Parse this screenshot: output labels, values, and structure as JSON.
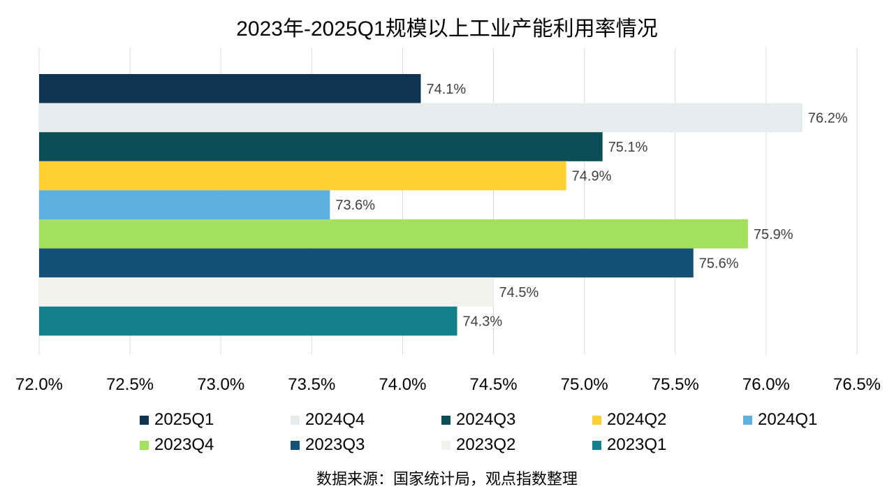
{
  "chart_data": {
    "type": "bar",
    "orientation": "horizontal",
    "title": "2023年-2025Q1规模以上工业产能利用率情况",
    "source": "数据来源：国家统计局，观点指数整理",
    "categories": [
      "2025Q1",
      "2024Q4",
      "2024Q3",
      "2024Q2",
      "2024Q1",
      "2023Q4",
      "2023Q3",
      "2023Q2",
      "2023Q1"
    ],
    "values": [
      74.1,
      76.2,
      75.1,
      74.9,
      73.6,
      75.9,
      75.6,
      74.5,
      74.3
    ],
    "value_labels": [
      "74.1%",
      "76.2%",
      "75.1%",
      "74.9%",
      "73.6%",
      "75.9%",
      "75.6%",
      "74.5%",
      "74.3%"
    ],
    "colors": [
      "#0e3550",
      "#e6ebee",
      "#0a4f56",
      "#fecf33",
      "#5eb1dc",
      "#a2e05e",
      "#135179",
      "#f1f2ee",
      "#13818b"
    ],
    "xlim": [
      72.0,
      76.5
    ],
    "x_ticks": [
      72.0,
      72.5,
      73.0,
      73.5,
      74.0,
      74.5,
      75.0,
      75.5,
      76.0,
      76.5
    ],
    "x_tick_labels": [
      "72.0%",
      "72.5%",
      "73.0%",
      "73.5%",
      "74.0%",
      "74.5%",
      "75.0%",
      "75.5%",
      "76.0%",
      "76.5%"
    ],
    "grid": true,
    "legend": "bottom",
    "legend_order": [
      0,
      1,
      2,
      3,
      4,
      5,
      6,
      7,
      8
    ]
  }
}
